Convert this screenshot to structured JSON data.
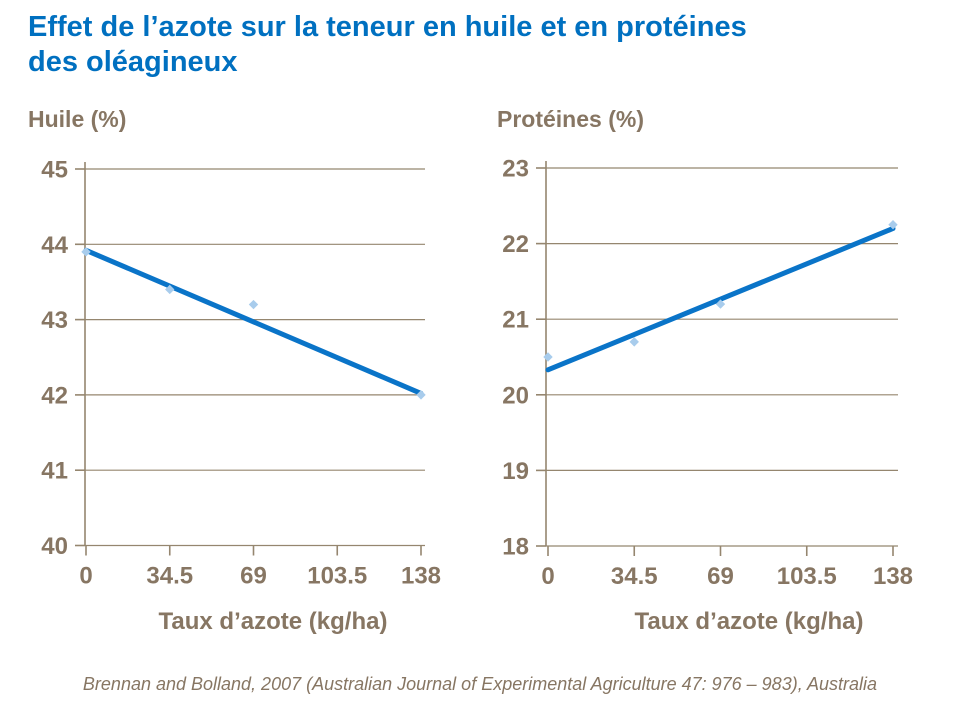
{
  "slide": {
    "title_line1": "Effet de l’azote sur la teneur en huile et en protéines",
    "title_line2": "des oléagineux",
    "source": "Brennan and Bolland, 2007 (Australian Journal of Experimental Agriculture 47: 976 – 983), Australia"
  },
  "colors": {
    "title_blue": "#0070C0",
    "line_blue": "#0A74C8",
    "marker_blue": "#A8CCEC",
    "axis_text_brown": "#877663",
    "grid_line_brown": "#95866F"
  },
  "chart_data": [
    {
      "type": "scatter",
      "title": "Huile (%)",
      "xlabel": "Taux d’azote (kg/ha)",
      "x_ticks": [
        "0",
        "34.5",
        "69",
        "103.5",
        "138"
      ],
      "xlim": [
        0,
        138
      ],
      "ylim": [
        40,
        45
      ],
      "y_ticks": [
        45,
        44,
        43,
        42,
        41,
        40
      ],
      "grid": true,
      "legend": "none",
      "points": {
        "x": [
          0,
          34.5,
          69,
          138
        ],
        "y": [
          43.9,
          43.4,
          43.2,
          42.0
        ]
      },
      "trendline": {
        "x": [
          0,
          138
        ],
        "y": [
          43.92,
          42.02
        ]
      }
    },
    {
      "type": "scatter",
      "title": "Protéines (%)",
      "xlabel": "Taux d’azote (kg/ha)",
      "x_ticks": [
        "0",
        "34.5",
        "69",
        "103.5",
        "138"
      ],
      "xlim": [
        0,
        138
      ],
      "ylim": [
        18,
        23
      ],
      "y_ticks": [
        23,
        22,
        21,
        20,
        19,
        18
      ],
      "grid": true,
      "legend": "none",
      "points": {
        "x": [
          0,
          34.5,
          69,
          138
        ],
        "y": [
          20.5,
          20.7,
          21.2,
          22.25
        ]
      },
      "trendline": {
        "x": [
          0,
          138
        ],
        "y": [
          20.33,
          22.2
        ]
      }
    }
  ]
}
